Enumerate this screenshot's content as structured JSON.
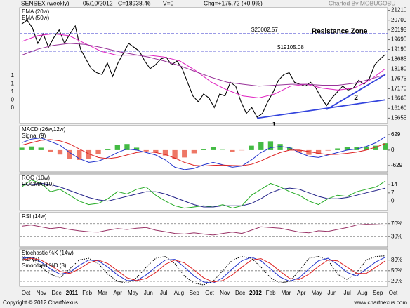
{
  "header": {
    "title": "SENSEX (weekly)",
    "date": "05/10/2012",
    "close": "C=18938.46",
    "volume": "V=0",
    "change": "Chg=+175.72 (+0.9%)",
    "credit": "Charted By MOBUGOBU"
  },
  "left_axis_fragments": [
    "1",
    "1",
    "1",
    "0",
    "0"
  ],
  "x_axis_labels": [
    "Oct",
    "Nov",
    "Dec",
    "2011",
    "Feb",
    "Mar",
    "Apr",
    "May",
    "Jun",
    "Jul",
    "Aug",
    "Sep",
    "Oct",
    "Nov",
    "Dec",
    "2012",
    "Feb",
    "Mar",
    "Apr",
    "May",
    "Jun",
    "Jul",
    "Aug",
    "Sep",
    "Oct"
  ],
  "footer": {
    "copyright": "Copyright © 2012 ChartNexus",
    "site": "www.chartnexus.com"
  },
  "chart_data": [
    {
      "type": "line",
      "ylim": [
        15380,
        21340
      ],
      "yticks": [
        21210,
        20700,
        20195,
        19695,
        19190,
        18685,
        18180,
        17675,
        17170,
        16665,
        16160,
        15655
      ],
      "series": [
        {
          "color": "#000000",
          "values": [
            20500,
            20700,
            20300,
            19500,
            20000,
            19300,
            19800,
            20200,
            19500,
            20000,
            20400,
            19200,
            18700,
            18200,
            18000,
            17900,
            18500,
            17800,
            18500,
            19000,
            19500,
            19300,
            19100,
            18600,
            18200,
            18400,
            18700,
            18800,
            18400,
            18600,
            18200,
            17500,
            16800,
            16500,
            16900,
            16700,
            16200,
            16900,
            16800,
            17500,
            17300,
            16500,
            15900,
            16200,
            15700,
            15900,
            16500,
            17000,
            17600,
            17900,
            18000,
            17500,
            17400,
            17300,
            17500,
            17200,
            16700,
            16300,
            16700,
            17000,
            17300,
            17100,
            17200,
            17600,
            17400,
            17700,
            18400,
            18700,
            18938.46
          ]
        },
        {
          "name": "EMA (20w)",
          "color": "#e020c0",
          "values": [
            19600,
            19900,
            20000,
            19900,
            19500,
            19100,
            18900,
            18900,
            18900,
            18800,
            18600,
            18100,
            17500,
            17100,
            16800,
            16700,
            16900,
            17300,
            17400,
            17200,
            17100,
            17200,
            17600,
            18200
          ]
        },
        {
          "name": "EMA (50w)",
          "color": "#993399",
          "values": [
            18900,
            19200,
            19400,
            19500,
            19450,
            19300,
            19100,
            18950,
            18800,
            18600,
            18350,
            18050,
            17750,
            17500,
            17400,
            17300,
            17350,
            17400,
            17400,
            17350,
            17350,
            17450,
            17650,
            17900
          ]
        }
      ],
      "hlines": [
        {
          "value": 20002.57,
          "label": "$20002.57",
          "color": "#3333cc"
        },
        {
          "value": 19105.08,
          "label": "$19105.08",
          "color": "#3333cc"
        }
      ],
      "trendlines": [
        {
          "from": [
            44,
            15650
          ],
          "to": [
            68,
            16600
          ],
          "label": "1",
          "color": "#3344dd"
        },
        {
          "from": [
            57,
            16100
          ],
          "to": [
            68,
            17900
          ],
          "label": "2",
          "color": "#3344dd"
        }
      ],
      "annotations": [
        "Resistance Zone"
      ]
    },
    {
      "type": "line",
      "ylim": [
        -890,
        1000
      ],
      "yticks": [
        629,
        0,
        -629
      ],
      "series": [
        {
          "kind": "bar",
          "pos_color": "#44bb44",
          "neg_color": "#ee7766",
          "values": [
            100,
            150,
            100,
            -80,
            -180,
            -350,
            -400,
            -350,
            -150,
            50,
            200,
            250,
            100,
            -40,
            -100,
            -220,
            -370,
            -300,
            -130,
            50,
            120,
            10,
            -70,
            -10,
            180,
            340,
            360,
            250,
            100,
            -100,
            -190,
            -170,
            -20,
            70,
            130,
            130,
            150,
            180,
            280
          ]
        },
        {
          "name": "MACD (26w,12w)",
          "color": "#2233cc",
          "values": [
            300,
            450,
            500,
            350,
            200,
            -100,
            -350,
            -500,
            -450,
            -300,
            -100,
            50,
            0,
            -100,
            -200,
            -400,
            -700,
            -800,
            -750,
            -600,
            -500,
            -600,
            -700,
            -650,
            -400,
            -100,
            100,
            150,
            100,
            -100,
            -250,
            -300,
            -200,
            -100,
            0,
            50,
            150,
            300,
            550
          ]
        },
        {
          "name": "Signal (9)",
          "color": "#dd2222",
          "values": [
            200,
            300,
            400,
            430,
            380,
            250,
            50,
            -150,
            -300,
            -350,
            -300,
            -200,
            -100,
            -60,
            -100,
            -180,
            -330,
            -500,
            -620,
            -650,
            -620,
            -610,
            -630,
            -640,
            -580,
            -440,
            -260,
            -100,
            0,
            0,
            -60,
            -130,
            -180,
            -170,
            -130,
            -80,
            0,
            120,
            270
          ]
        }
      ]
    },
    {
      "type": "line",
      "ylim": [
        -8,
        23
      ],
      "yticks": [
        14,
        7,
        0
      ],
      "series": [
        {
          "name": "ROC (10w)",
          "color": "#22aa22",
          "values": [
            12,
            18,
            15,
            8,
            10,
            5,
            0,
            -3,
            -2,
            2,
            8,
            6,
            10,
            12,
            5,
            0,
            -4,
            -6,
            -5,
            -4,
            -5,
            -3,
            -6,
            -4,
            5,
            10,
            15,
            12,
            8,
            5,
            0,
            -3,
            2,
            5,
            4,
            8,
            10,
            12,
            17
          ]
        },
        {
          "name": "ROCMA (10)",
          "color": "#222288",
          "values": [
            14,
            14,
            15,
            14,
            12,
            9,
            6,
            3,
            1,
            0,
            2,
            4,
            6,
            8,
            8,
            6,
            3,
            0,
            -3,
            -5,
            -5,
            -4,
            -4,
            -4,
            -2,
            2,
            7,
            10,
            11,
            10,
            7,
            4,
            2,
            2,
            3,
            5,
            7,
            9,
            11
          ]
        }
      ]
    },
    {
      "type": "line",
      "ylim": [
        -2,
        104
      ],
      "yticks": [
        {
          "value": 70,
          "label": "70%"
        },
        {
          "value": 30,
          "label": "30%"
        }
      ],
      "tick_lines": "dashed",
      "series": [
        {
          "name": "RSI (14w)",
          "color": "#993366",
          "values": [
            62,
            66,
            60,
            55,
            58,
            52,
            48,
            45,
            44,
            50,
            55,
            52,
            56,
            58,
            50,
            45,
            40,
            38,
            42,
            38,
            35,
            40,
            44,
            40,
            50,
            60,
            58,
            56,
            50,
            44,
            42,
            48,
            46,
            52,
            58,
            66,
            68,
            67,
            66
          ]
        }
      ]
    },
    {
      "type": "line",
      "ylim": [
        6,
        111
      ],
      "yticks": [
        {
          "value": 80,
          "label": "80%"
        },
        {
          "value": 50,
          "label": "50%"
        },
        {
          "value": 20,
          "label": "20%"
        }
      ],
      "tick_lines": "dashed",
      "series": [
        {
          "name": "Stochastic %K (14w)",
          "color": "#000000",
          "dash": true,
          "values": [
            90,
            85,
            60,
            40,
            30,
            55,
            80,
            85,
            70,
            40,
            20,
            15,
            30,
            60,
            85,
            90,
            70,
            35,
            15,
            10,
            20,
            50,
            80,
            90,
            85,
            60,
            30,
            15,
            20,
            50,
            85,
            90,
            80,
            40,
            25,
            45,
            80,
            90,
            92
          ]
        },
        {
          "name": "%D (3)",
          "color": "#2233cc",
          "values": [
            85,
            88,
            75,
            55,
            40,
            45,
            65,
            80,
            78,
            60,
            38,
            22,
            22,
            38,
            60,
            80,
            82,
            60,
            35,
            18,
            15,
            30,
            55,
            78,
            88,
            78,
            55,
            32,
            20,
            30,
            55,
            78,
            85,
            68,
            45,
            35,
            55,
            75,
            88
          ]
        },
        {
          "name": "Smoothed %D (3)",
          "color": "#dd2222",
          "values": [
            80,
            85,
            80,
            65,
            48,
            42,
            55,
            72,
            80,
            70,
            50,
            30,
            22,
            28,
            45,
            68,
            80,
            72,
            52,
            30,
            18,
            22,
            38,
            60,
            80,
            84,
            70,
            48,
            28,
            25,
            40,
            62,
            80,
            78,
            60,
            42,
            42,
            60,
            78
          ]
        }
      ]
    }
  ]
}
